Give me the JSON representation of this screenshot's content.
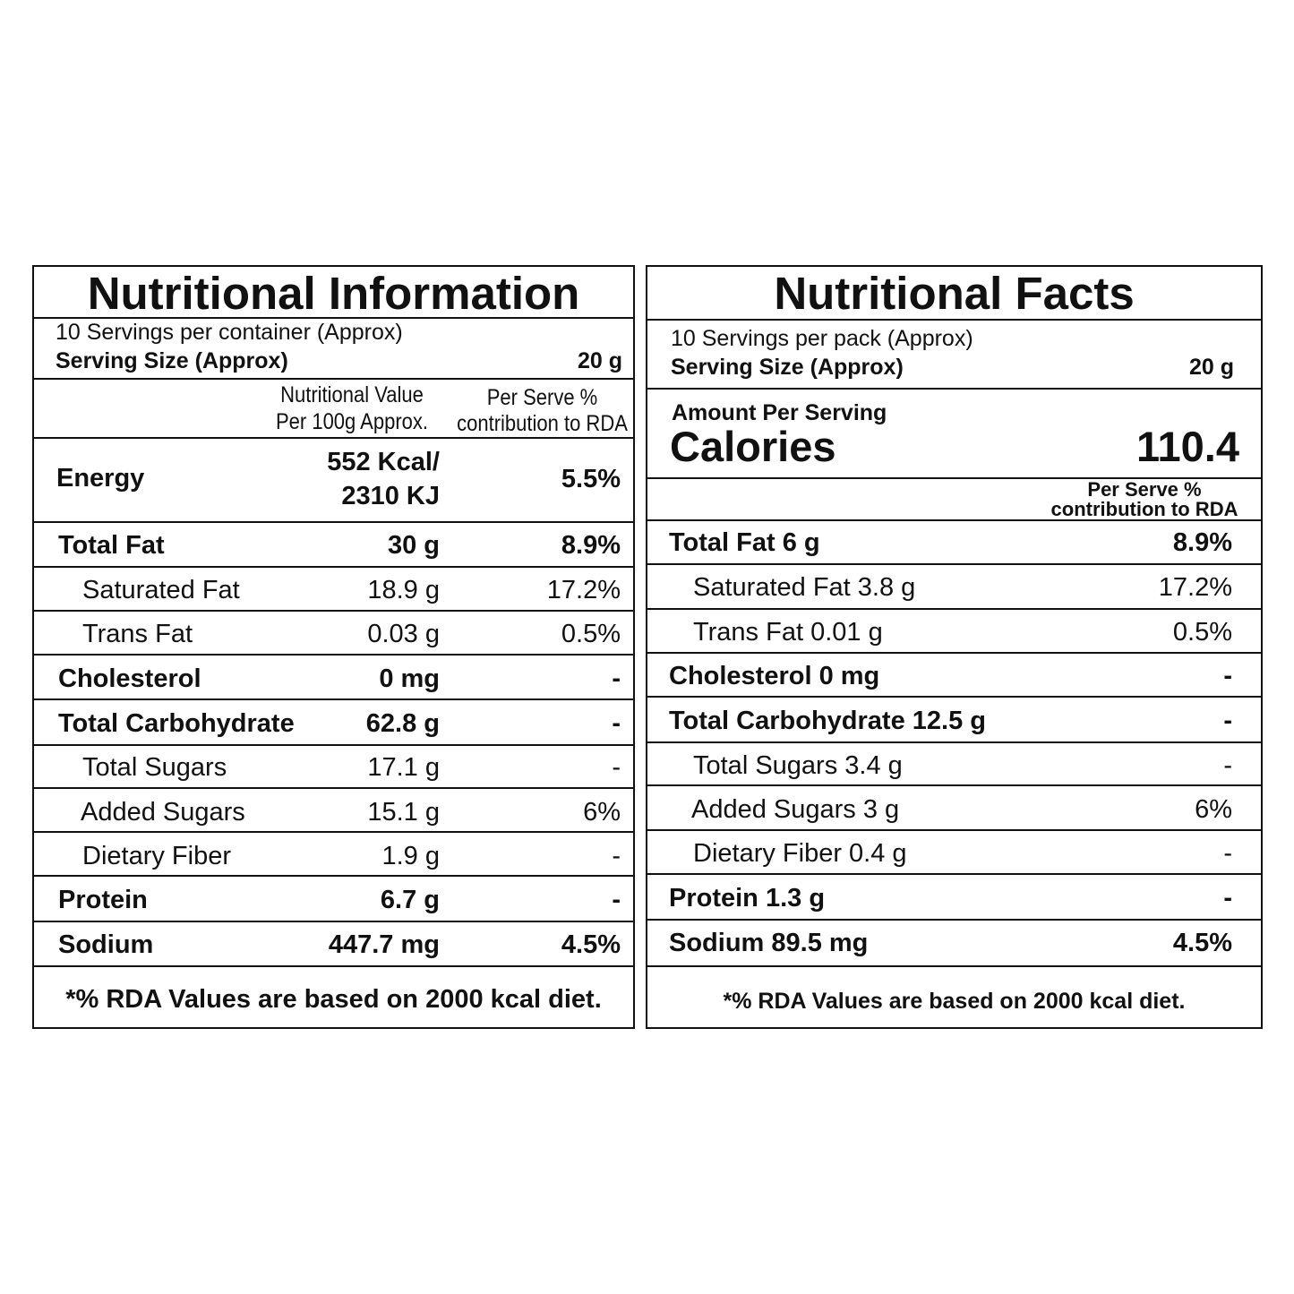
{
  "left": {
    "title": "Nutritional Information",
    "servings": "10 Servings per container (Approx)",
    "serving_size_label": "Serving Size (Approx)",
    "serving_size_value": "20 g",
    "col_value_line1": "Nutritional Value",
    "col_value_line2": "Per 100g Approx.",
    "col_rda_line1": "Per Serve %",
    "col_rda_line2": "contribution to RDA",
    "energy": {
      "label": "Energy",
      "value_line1": "552 Kcal/",
      "value_line2": "2310 KJ",
      "rda": "5.5%"
    },
    "rows": [
      {
        "label": "Total Fat",
        "value": "30 g",
        "rda": "8.9%"
      },
      {
        "label": "Saturated Fat",
        "value": "18.9 g",
        "rda": "17.2%"
      },
      {
        "label": "Trans Fat",
        "value": "0.03 g",
        "rda": "0.5%"
      },
      {
        "label": "Cholesterol",
        "value": "0 mg",
        "rda": "-"
      },
      {
        "label": "Total Carbohydrate",
        "value": "62.8 g",
        "rda": "-"
      },
      {
        "label": "Total Sugars",
        "value": "17.1 g",
        "rda": "-"
      },
      {
        "label": "Added Sugars",
        "value": "15.1 g",
        "rda": "6%"
      },
      {
        "label": "Dietary Fiber",
        "value": "1.9 g",
        "rda": "-"
      },
      {
        "label": "Protein",
        "value": "6.7 g",
        "rda": "-"
      },
      {
        "label": "Sodium",
        "value": "447.7 mg",
        "rda": "4.5%"
      }
    ],
    "footnote": "*% RDA Values are based on 2000 kcal diet."
  },
  "right": {
    "title": "Nutritional Facts",
    "servings": "10 Servings per pack (Approx)",
    "serving_size_label": "Serving Size (Approx)",
    "serving_size_value": "20 g",
    "amount_per_serving": "Amount Per Serving",
    "calories_label": "Calories",
    "calories_value": "110.4",
    "col_rda_line1": "Per Serve %",
    "col_rda_line2": "contribution to RDA",
    "rows": [
      {
        "label": "Total Fat 6 g",
        "rda": "8.9%"
      },
      {
        "label": "Saturated Fat 3.8 g",
        "rda": "17.2%"
      },
      {
        "label": "Trans Fat 0.01 g",
        "rda": "0.5%"
      },
      {
        "label": "Cholesterol 0 mg",
        "rda": "-"
      },
      {
        "label": "Total Carbohydrate 12.5 g",
        "rda": "-"
      },
      {
        "label": "Total Sugars 3.4 g",
        "rda": "-"
      },
      {
        "label": "Added Sugars 3 g",
        "rda": "6%"
      },
      {
        "label": "Dietary Fiber 0.4 g",
        "rda": "-"
      },
      {
        "label": "Protein 1.3 g",
        "rda": "-"
      },
      {
        "label": "Sodium 89.5 mg",
        "rda": "4.5%"
      }
    ],
    "footnote": "*% RDA Values are based on 2000 kcal diet."
  }
}
